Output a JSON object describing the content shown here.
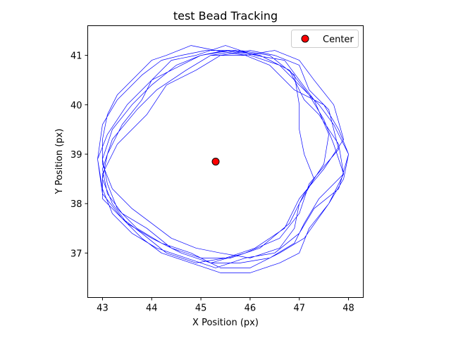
{
  "chart_data": {
    "type": "line",
    "title": "test Bead Tracking",
    "xlabel": "X Position (px)",
    "ylabel": "Y Position (px)",
    "xlim": [
      42.7,
      48.3
    ],
    "ylim": [
      36.1,
      41.6
    ],
    "xticks": [
      43,
      44,
      45,
      46,
      47,
      48
    ],
    "yticks": [
      37,
      38,
      39,
      40,
      41
    ],
    "grid": false,
    "legend_position": "top-right",
    "trajectory_color": "#0000ff",
    "center_color": "#ff0000",
    "series": [
      {
        "kind": "trajectory",
        "x": [
          45.2,
          45.8,
          46.4,
          46.9,
          47.0,
          47.0,
          47.1,
          47.3,
          47.0,
          46.9,
          46.6,
          46.0,
          45.4,
          44.9,
          44.4,
          44.0,
          43.6,
          43.2,
          43.0,
          43.0,
          43.1,
          43.3,
          43.6,
          44.0,
          44.3,
          44.8,
          45.3,
          45.9,
          46.4,
          46.9,
          47.5,
          47.8,
          48.0,
          47.9,
          47.6,
          47.2,
          47.0,
          46.6,
          46.0,
          45.4,
          44.8,
          44.2,
          43.8,
          43.4,
          43.0,
          42.9,
          43.0,
          43.3,
          43.8,
          44.2,
          44.6,
          45.1,
          45.7,
          46.2,
          46.8,
          47.2,
          47.5,
          47.7,
          47.9,
          47.6,
          47.1,
          46.6,
          46.0,
          45.4,
          44.8,
          44.2,
          43.7,
          43.3,
          43.1,
          43.0,
          43.2,
          43.6,
          44.0,
          44.5,
          45.0,
          45.6,
          46.2,
          46.8,
          47.1,
          47.4,
          47.8,
          47.9,
          47.4,
          47.1,
          46.9,
          46.4,
          45.8,
          45.2,
          44.6,
          44.0,
          43.5,
          43.2,
          43.0,
          43.1,
          43.4,
          43.8,
          44.0,
          44.6,
          45.0,
          45.5,
          46.0,
          46.6,
          47.0,
          47.4,
          47.7,
          48.0,
          47.8,
          47.3,
          47.0,
          46.5,
          45.9,
          45.3,
          44.7,
          44.1,
          43.6,
          43.2,
          43.0,
          42.9,
          43.1,
          43.5,
          44.0,
          44.4,
          44.9,
          45.5,
          46.1,
          46.7,
          47.0,
          47.3,
          47.6,
          47.5,
          47.1,
          46.8,
          46.2,
          45.6,
          45.0,
          44.4,
          43.9,
          43.4,
          43.1,
          43.0,
          43.2,
          43.7,
          44.1,
          44.7,
          45.2,
          45.9,
          46.5,
          47.0,
          47.3,
          47.7,
          47.9,
          47.5,
          47.0,
          46.7,
          46.1,
          45.5,
          44.9,
          44.3,
          43.8,
          43.4,
          43.0,
          43.0,
          43.3,
          43.9,
          44.3,
          44.9,
          45.4,
          46.0,
          46.5,
          47.0,
          47.2,
          47.6,
          47.8,
          47.2,
          47.0,
          46.6,
          45.9,
          45.2
        ],
        "y": [
          41.0,
          41.1,
          41.0,
          40.6,
          40.0,
          39.5,
          39.0,
          38.5,
          38.0,
          37.5,
          37.1,
          36.9,
          37.0,
          37.1,
          37.3,
          37.6,
          37.9,
          38.3,
          38.8,
          39.3,
          39.8,
          40.2,
          40.5,
          40.9,
          41.0,
          41.2,
          41.1,
          41.0,
          40.8,
          40.3,
          40.0,
          39.5,
          39.0,
          38.5,
          38.0,
          37.5,
          37.0,
          36.8,
          36.6,
          36.6,
          36.8,
          37.0,
          37.3,
          37.7,
          38.2,
          38.9,
          39.6,
          40.1,
          40.6,
          40.9,
          41.0,
          41.1,
          41.1,
          41.0,
          40.7,
          40.2,
          39.7,
          39.2,
          38.6,
          38.0,
          37.3,
          37.0,
          36.7,
          36.7,
          37.0,
          37.2,
          37.5,
          37.9,
          38.4,
          38.9,
          39.5,
          40.0,
          40.4,
          40.8,
          41.0,
          41.1,
          41.0,
          40.7,
          40.1,
          39.8,
          39.2,
          38.6,
          38.1,
          37.6,
          37.2,
          36.9,
          36.8,
          36.8,
          37.0,
          37.3,
          37.6,
          38.0,
          38.5,
          39.0,
          39.6,
          40.1,
          40.5,
          40.8,
          41.0,
          41.1,
          41.0,
          40.8,
          40.4,
          40.0,
          39.6,
          39.0,
          38.3,
          37.9,
          37.4,
          37.0,
          36.9,
          36.7,
          36.9,
          37.1,
          37.4,
          37.8,
          38.3,
          38.9,
          39.4,
          40.0,
          40.5,
          40.9,
          41.0,
          41.2,
          41.0,
          40.9,
          40.5,
          40.1,
          39.4,
          38.8,
          38.2,
          37.6,
          37.1,
          36.9,
          36.9,
          37.1,
          37.5,
          37.8,
          38.2,
          38.7,
          39.3,
          39.9,
          40.3,
          40.7,
          41.0,
          41.0,
          41.1,
          40.9,
          40.5,
          40.0,
          39.3,
          38.7,
          38.1,
          37.5,
          37.1,
          36.9,
          36.8,
          37.0,
          37.4,
          37.7,
          38.1,
          38.6,
          39.2,
          39.8,
          40.4,
          40.7,
          41.0,
          41.1,
          41.0,
          40.8,
          40.3,
          39.9,
          39.1,
          38.4,
          37.8,
          37.3,
          37.0,
          36.8
        ]
      },
      {
        "kind": "center",
        "name": "Center",
        "x": [
          45.3
        ],
        "y": [
          38.85
        ]
      }
    ]
  }
}
